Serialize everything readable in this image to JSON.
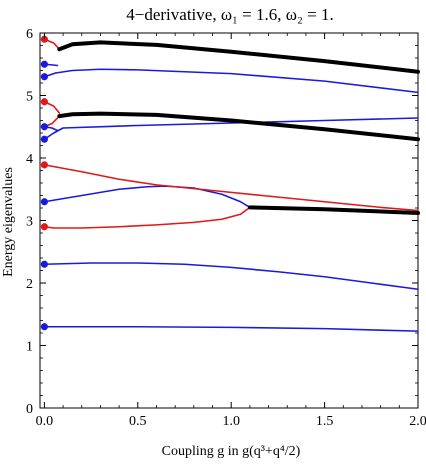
{
  "chart_data": {
    "type": "line",
    "title": "4−derivative, ω₁ = 1.6, ω₂ = 1.",
    "xlabel": "Coupling g in g(q³+q⁴/2)",
    "ylabel": "Energy eigenvalues",
    "xlim": [
      0,
      2.0
    ],
    "ylim": [
      0,
      6
    ],
    "xticks": [
      0.0,
      0.5,
      1.0,
      1.5,
      2.0
    ],
    "xtick_labels": [
      "0.0",
      "0.5",
      "1.0",
      "1.5",
      "2.0"
    ],
    "yticks": [
      0,
      1,
      2,
      3,
      4,
      5,
      6
    ],
    "ytick_labels": [
      "0",
      "1",
      "2",
      "3",
      "4",
      "5",
      "6"
    ],
    "grid": false,
    "colors": {
      "blue": "#1a1adf",
      "red": "#e01818",
      "black": "#000000"
    },
    "series": [
      {
        "color": "blue",
        "width": 1.6,
        "points": [
          [
            0,
            1.3
          ],
          [
            0.5,
            1.3
          ],
          [
            1.0,
            1.29
          ],
          [
            1.5,
            1.27
          ],
          [
            2.0,
            1.23
          ]
        ]
      },
      {
        "color": "blue",
        "width": 1.6,
        "points": [
          [
            0,
            2.3
          ],
          [
            0.25,
            2.32
          ],
          [
            0.5,
            2.32
          ],
          [
            0.75,
            2.3
          ],
          [
            1.0,
            2.25
          ],
          [
            1.25,
            2.18
          ],
          [
            1.5,
            2.1
          ],
          [
            1.75,
            2.0
          ],
          [
            2.0,
            1.9
          ]
        ]
      },
      {
        "color": "blue",
        "width": 1.6,
        "points": [
          [
            0,
            3.3
          ],
          [
            0.2,
            3.4
          ],
          [
            0.4,
            3.5
          ],
          [
            0.55,
            3.54
          ],
          [
            0.65,
            3.55
          ],
          [
            0.8,
            3.52
          ],
          [
            0.95,
            3.42
          ],
          [
            1.05,
            3.3
          ],
          [
            1.1,
            3.21
          ]
        ]
      },
      {
        "color": "red",
        "width": 1.6,
        "points": [
          [
            0,
            3.89
          ],
          [
            0.2,
            3.78
          ],
          [
            0.4,
            3.66
          ],
          [
            0.6,
            3.57
          ],
          [
            0.8,
            3.51
          ],
          [
            1.0,
            3.45
          ],
          [
            1.2,
            3.39
          ],
          [
            1.4,
            3.33
          ],
          [
            1.6,
            3.27
          ],
          [
            1.8,
            3.21
          ],
          [
            2.0,
            3.16
          ]
        ]
      },
      {
        "color": "red",
        "width": 1.6,
        "points": [
          [
            0,
            2.9
          ],
          [
            0.05,
            2.88
          ],
          [
            0.2,
            2.88
          ],
          [
            0.4,
            2.9
          ],
          [
            0.6,
            2.93
          ],
          [
            0.8,
            2.97
          ],
          [
            0.95,
            3.02
          ],
          [
            1.05,
            3.1
          ],
          [
            1.1,
            3.21
          ]
        ]
      },
      {
        "color": "black",
        "width": 4,
        "points": [
          [
            1.1,
            3.21
          ],
          [
            1.5,
            3.18
          ],
          [
            2.0,
            3.12
          ]
        ]
      },
      {
        "color": "blue",
        "width": 1.6,
        "points": [
          [
            0,
            4.3
          ],
          [
            0.05,
            4.4
          ],
          [
            0.1,
            4.48
          ],
          [
            0.5,
            4.52
          ],
          [
            1.0,
            4.56
          ],
          [
            1.5,
            4.6
          ],
          [
            2.0,
            4.64
          ]
        ]
      },
      {
        "color": "blue",
        "width": 1.6,
        "points": [
          [
            0,
            4.5
          ],
          [
            0.04,
            4.48
          ],
          [
            0.07,
            4.44
          ]
        ]
      },
      {
        "color": "red",
        "width": 1.6,
        "points": [
          [
            0,
            4.9
          ],
          [
            0.05,
            4.83
          ],
          [
            0.08,
            4.72
          ]
        ]
      },
      {
        "color": "red",
        "width": 1.6,
        "points": [
          [
            0,
            4.5
          ],
          [
            0.04,
            4.55
          ],
          [
            0.08,
            4.67
          ]
        ]
      },
      {
        "color": "black",
        "width": 4,
        "points": [
          [
            0.08,
            4.67
          ],
          [
            0.15,
            4.7
          ],
          [
            0.3,
            4.71
          ],
          [
            0.6,
            4.69
          ],
          [
            1.0,
            4.6
          ],
          [
            1.5,
            4.46
          ],
          [
            2.0,
            4.3
          ]
        ]
      },
      {
        "color": "blue",
        "width": 1.6,
        "points": [
          [
            0,
            5.3
          ],
          [
            0.06,
            5.36
          ],
          [
            0.15,
            5.4
          ],
          [
            0.3,
            5.42
          ],
          [
            0.5,
            5.41
          ],
          [
            1.0,
            5.35
          ],
          [
            1.5,
            5.23
          ],
          [
            2.0,
            5.05
          ]
        ]
      },
      {
        "color": "blue",
        "width": 1.6,
        "points": [
          [
            0,
            5.5
          ],
          [
            0.04,
            5.49
          ],
          [
            0.07,
            5.48
          ]
        ]
      },
      {
        "color": "red",
        "width": 1.6,
        "points": [
          [
            0,
            5.9
          ],
          [
            0.05,
            5.84
          ],
          [
            0.08,
            5.74
          ]
        ]
      },
      {
        "color": "black",
        "width": 4,
        "points": [
          [
            0.08,
            5.74
          ],
          [
            0.15,
            5.82
          ],
          [
            0.3,
            5.85
          ],
          [
            0.6,
            5.81
          ],
          [
            1.0,
            5.7
          ],
          [
            1.5,
            5.55
          ],
          [
            2.0,
            5.38
          ]
        ]
      }
    ],
    "markers": [
      {
        "x": 0,
        "y": 1.3,
        "color": "blue"
      },
      {
        "x": 0,
        "y": 2.3,
        "color": "blue"
      },
      {
        "x": 0,
        "y": 2.9,
        "color": "red"
      },
      {
        "x": 0,
        "y": 3.3,
        "color": "blue"
      },
      {
        "x": 0,
        "y": 3.89,
        "color": "red"
      },
      {
        "x": 0,
        "y": 4.3,
        "color": "blue"
      },
      {
        "x": 0,
        "y": 4.5,
        "color": "blue"
      },
      {
        "x": 0,
        "y": 4.9,
        "color": "red"
      },
      {
        "x": 0,
        "y": 5.3,
        "color": "blue"
      },
      {
        "x": 0,
        "y": 5.5,
        "color": "blue"
      },
      {
        "x": 0,
        "y": 5.9,
        "color": "red"
      }
    ]
  }
}
